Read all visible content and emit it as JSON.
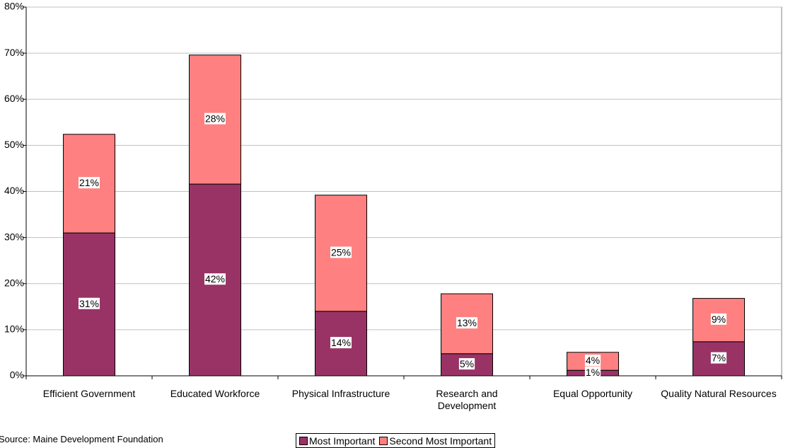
{
  "chart_data": {
    "type": "stacked_bar",
    "categories": [
      "Efficient Government",
      "Educated Workforce",
      "Physical Infrastructure",
      "Research and Development",
      "Equal Opportunity",
      "Quality Natural Resources"
    ],
    "series": [
      {
        "name": "Most Important",
        "color": "#993366",
        "values": [
          31,
          41.6,
          14,
          4.8,
          1.2,
          7.4
        ],
        "value_labels": [
          "31%",
          "42%",
          "14%",
          "5%",
          "1%",
          "7%"
        ]
      },
      {
        "name": "Second Most Important",
        "color": "#ff8080",
        "values": [
          21.4,
          28,
          25.2,
          13,
          3.9,
          9.4
        ],
        "value_labels": [
          "21%",
          "28%",
          "25%",
          "13%",
          "4%",
          "9%"
        ]
      }
    ],
    "ylim": [
      0,
      80
    ],
    "yticks": [
      {
        "value": 0,
        "label": "0%"
      },
      {
        "value": 10,
        "label": "10%"
      },
      {
        "value": 20,
        "label": "20%"
      },
      {
        "value": 30,
        "label": "30%"
      },
      {
        "value": 40,
        "label": "40%"
      },
      {
        "value": 50,
        "label": "50%"
      },
      {
        "value": 60,
        "label": "60%"
      },
      {
        "value": 70,
        "label": "70%"
      },
      {
        "value": 80,
        "label": "80%"
      }
    ],
    "grid": true,
    "source": "Source: Maine Development Foundation"
  }
}
